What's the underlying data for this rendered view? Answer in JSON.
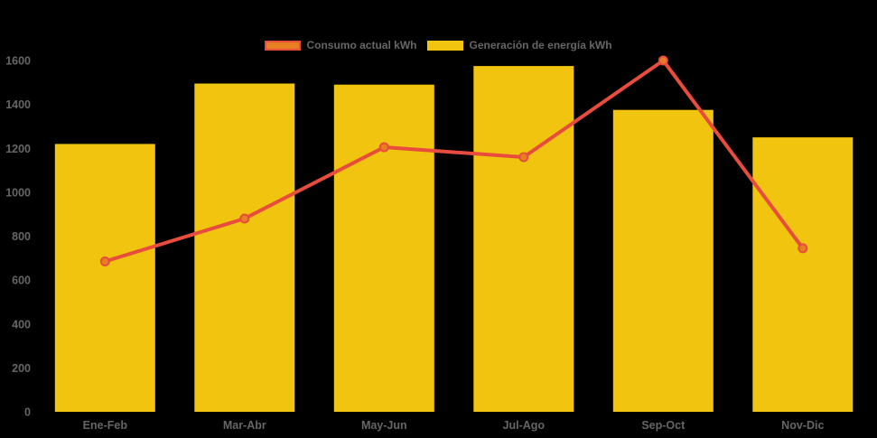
{
  "chart": {
    "background": "#000000",
    "text_color": "#666666",
    "legend": {
      "items": [
        {
          "label": "Consumo actual kWh",
          "swatch_fill": "#e67e22",
          "swatch_border": "#e74c3c"
        },
        {
          "label": "Generación de energía kWh",
          "swatch_fill": "#f1c40f",
          "swatch_border": "#f1c40f"
        }
      ]
    }
  },
  "chart_data": {
    "type": "combo_bar_line",
    "title": "",
    "xlabel": "",
    "ylabel": "",
    "categories": [
      "Ene-Feb",
      "Mar-Abr",
      "May-Jun",
      "Jul-Ago",
      "Sep-Oct",
      "Nov-Dic"
    ],
    "series": [
      {
        "name": "Consumo actual kWh",
        "type": "line",
        "color": "#e74c3c",
        "marker_fill": "#e67e22",
        "marker_border": "#e74c3c",
        "values": [
          685,
          880,
          1205,
          1160,
          1600,
          745
        ]
      },
      {
        "name": "Generación de energía kWh",
        "type": "bar",
        "color": "#f1c40f",
        "values": [
          1220,
          1495,
          1490,
          1575,
          1375,
          1250
        ]
      }
    ],
    "ylim": [
      0,
      1600
    ],
    "ytick_step": 200,
    "yticks": [
      0,
      200,
      400,
      600,
      800,
      1000,
      1200,
      1400,
      1600
    ],
    "grid": false,
    "legend_position": "top"
  }
}
